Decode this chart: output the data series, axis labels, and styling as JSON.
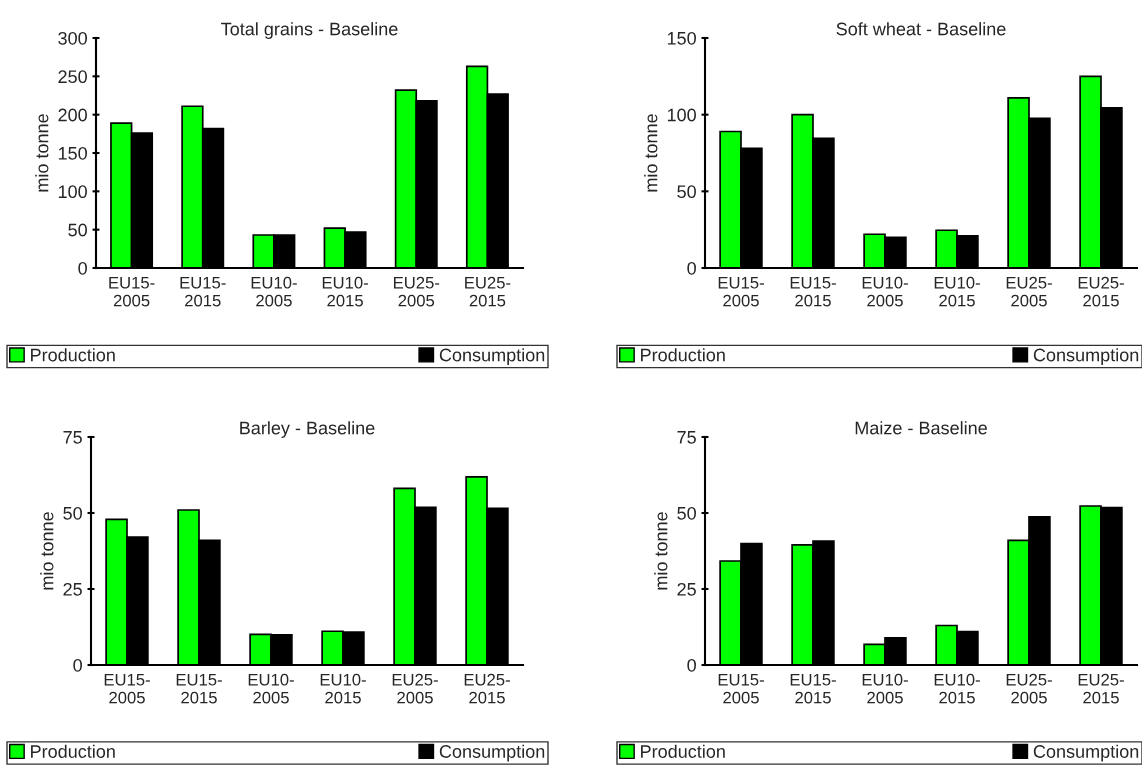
{
  "chart_data": [
    {
      "type": "bar",
      "title": "Total grains - Baseline",
      "ylabel": "mio tonne",
      "categories": [
        "EU15-\n2005",
        "EU15-\n2015",
        "EU10-\n2005",
        "EU10-\n2015",
        "EU25-\n2005",
        "EU25-\n2015"
      ],
      "ylim": [
        0,
        300
      ],
      "yticks": [
        0,
        50,
        100,
        150,
        200,
        250,
        300
      ],
      "grid": false,
      "legend": "bottom",
      "series": [
        {
          "name": "Production",
          "color": "#00ff00",
          "values": [
            189,
            211,
            43,
            52,
            232,
            263
          ]
        },
        {
          "name": "Consumption",
          "color": "#000000",
          "values": [
            176,
            182,
            43,
            47,
            218,
            227
          ]
        }
      ]
    },
    {
      "type": "bar",
      "title": "Soft wheat - Baseline",
      "ylabel": "mio tonne",
      "categories": [
        "EU15-\n2005",
        "EU15-\n2015",
        "EU10-\n2005",
        "EU10-\n2015",
        "EU25-\n2005",
        "EU25-\n2015"
      ],
      "ylim": [
        0,
        150
      ],
      "yticks": [
        0,
        50,
        100,
        150
      ],
      "grid": false,
      "legend": "bottom",
      "series": [
        {
          "name": "Production",
          "color": "#00ff00",
          "values": [
            89,
            100,
            22,
            24.6,
            111,
            125
          ]
        },
        {
          "name": "Consumption",
          "color": "#000000",
          "values": [
            78,
            84.6,
            20,
            21,
            97.6,
            104.5
          ]
        }
      ]
    },
    {
      "type": "bar",
      "title": "Barley - Baseline",
      "ylabel": "mio tonne",
      "categories": [
        "EU15-\n2005",
        "EU15-\n2015",
        "EU10-\n2005",
        "EU10-\n2015",
        "EU25-\n2005",
        "EU25-\n2015"
      ],
      "ylim": [
        0,
        75
      ],
      "yticks": [
        0,
        25,
        50,
        75
      ],
      "grid": false,
      "legend": "bottom",
      "series": [
        {
          "name": "Production",
          "color": "#00ff00",
          "values": [
            47.9,
            51,
            10.1,
            11.1,
            58.1,
            61.9
          ]
        },
        {
          "name": "Consumption",
          "color": "#000000",
          "values": [
            42.1,
            41,
            9.9,
            10.8,
            51.9,
            51.5
          ]
        }
      ]
    },
    {
      "type": "bar",
      "title": "Maize - Baseline",
      "ylabel": "mio tonne",
      "categories": [
        "EU15-\n2005",
        "EU15-\n2015",
        "EU10-\n2005",
        "EU10-\n2015",
        "EU25-\n2005",
        "EU25-\n2015"
      ],
      "ylim": [
        0,
        75
      ],
      "yticks": [
        0,
        25,
        50,
        75
      ],
      "grid": false,
      "legend": "bottom",
      "series": [
        {
          "name": "Production",
          "color": "#00ff00",
          "values": [
            34.2,
            39.5,
            6.8,
            13,
            41,
            52.3
          ]
        },
        {
          "name": "Consumption",
          "color": "#000000",
          "values": [
            39.9,
            40.8,
            8.9,
            11,
            48.7,
            51.8
          ]
        }
      ]
    }
  ]
}
